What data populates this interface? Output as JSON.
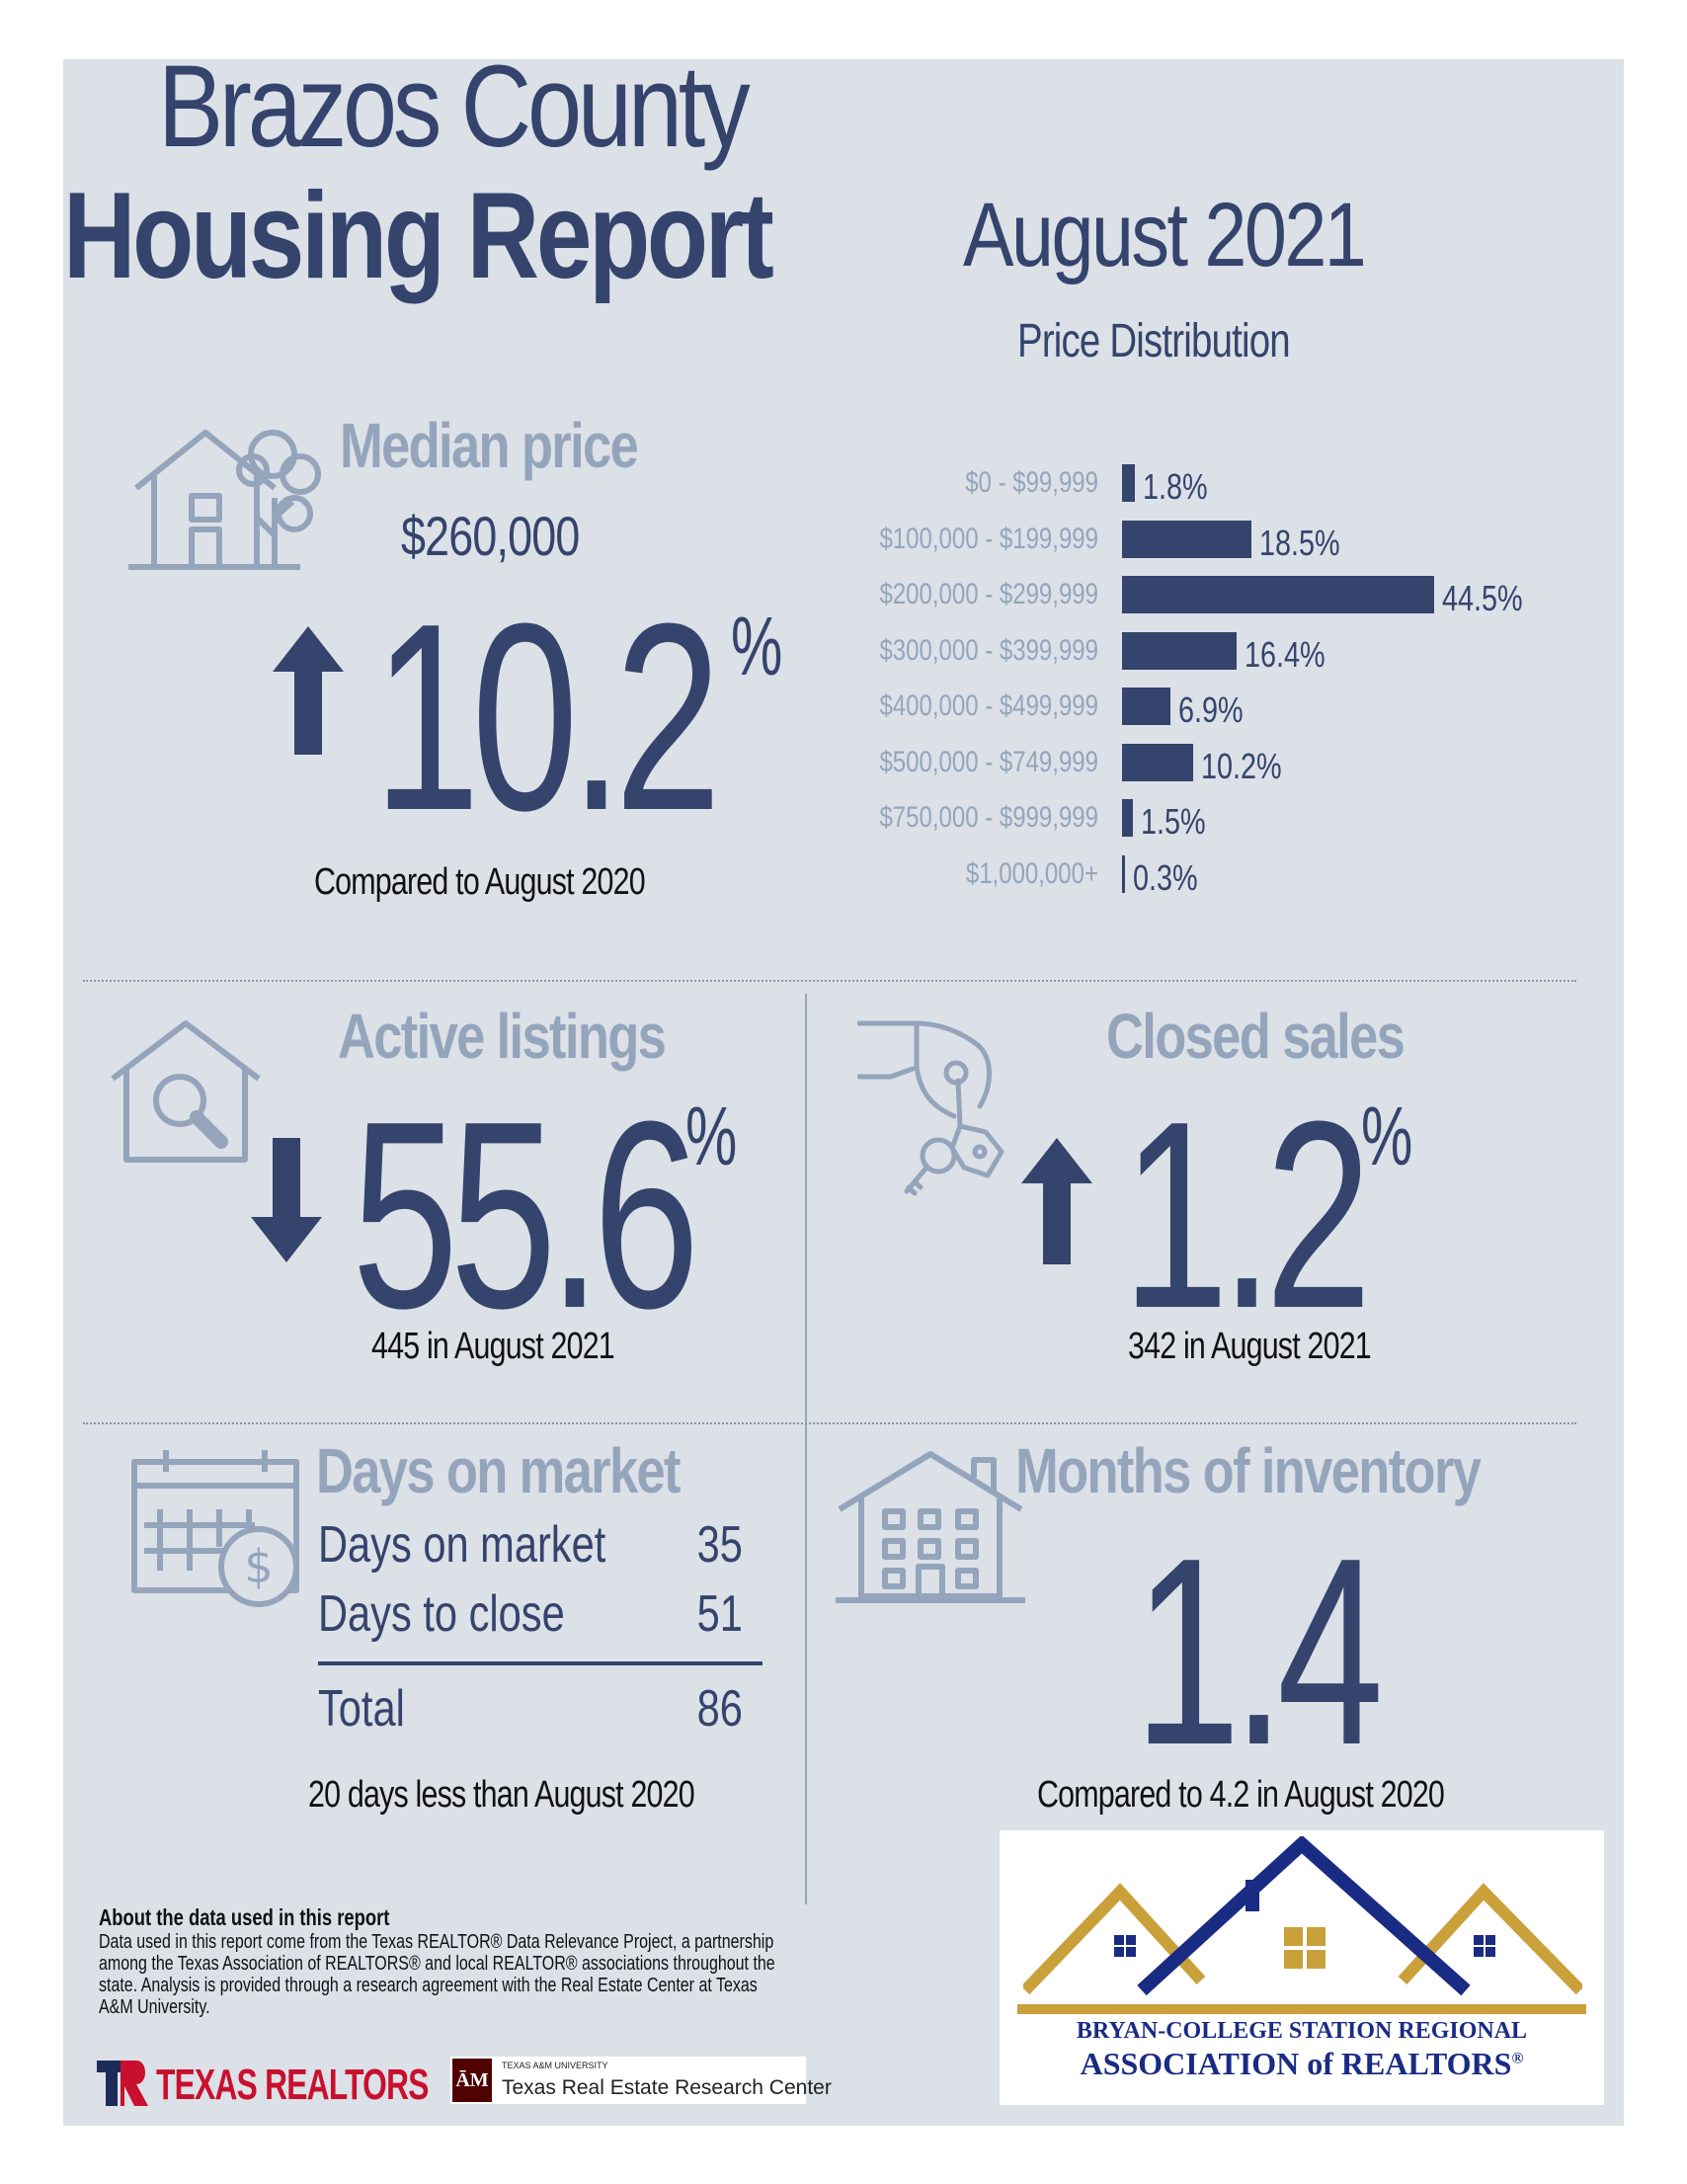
{
  "header": {
    "title_line1": "Brazos County",
    "title_line2": "Housing Report",
    "month": "August 2021"
  },
  "median_price": {
    "heading": "Median price",
    "value": "$260,000",
    "change": "10.2",
    "unit": "%",
    "direction": "up",
    "caption": "Compared to August 2020",
    "icon": "house-with-tree-icon"
  },
  "price_distribution": {
    "title": "Price Distribution",
    "rows": [
      {
        "label": "$0 - $99,999",
        "value": 1.8,
        "display": "1.8%"
      },
      {
        "label": "$100,000 - $199,999",
        "value": 18.5,
        "display": "18.5%"
      },
      {
        "label": "$200,000 - $299,999",
        "value": 44.5,
        "display": "44.5%"
      },
      {
        "label": "$300,000 - $399,999",
        "value": 16.4,
        "display": "16.4%"
      },
      {
        "label": "$400,000 - $499,999",
        "value": 6.9,
        "display": "6.9%"
      },
      {
        "label": "$500,000 - $749,999",
        "value": 10.2,
        "display": "10.2%"
      },
      {
        "label": "$750,000 - $999,999",
        "value": 1.5,
        "display": "1.5%"
      },
      {
        "label": "$1,000,000+",
        "value": 0.3,
        "display": "0.3%"
      }
    ]
  },
  "active_listings": {
    "heading": "Active listings",
    "change": "55.6",
    "unit": "%",
    "direction": "down",
    "caption": "445 in August 2021",
    "icon": "house-search-icon"
  },
  "closed_sales": {
    "heading": "Closed sales",
    "change": "1.2",
    "unit": "%",
    "direction": "up",
    "caption": "342 in August 2021",
    "icon": "hand-with-keys-icon"
  },
  "days_on_market": {
    "heading": "Days on market",
    "rows": [
      {
        "label": "Days on market",
        "value": "35"
      },
      {
        "label": "Days to close",
        "value": "51"
      }
    ],
    "total_label": "Total",
    "total_value": "86",
    "caption": "20 days less than August 2020",
    "icon": "calendar-dollar-icon"
  },
  "months_inventory": {
    "heading": "Months of inventory",
    "value": "1.4",
    "caption": "Compared to 4.2 in August 2020",
    "icon": "apartment-house-icon"
  },
  "about": {
    "heading": "About the data used in this report",
    "body": "Data used in this report come from the Texas REALTOR® Data Relevance Project, a partnership among the Texas Association of REALTORS® and local REALTOR® associations throughout the state. Analysis is provided through a research agreement with the Real Estate Center at Texas A&M University."
  },
  "logos": {
    "texas_realtors": "TEXAS REALTORS",
    "tamu_small": "TEXAS A&M UNIVERSITY",
    "tamu_center": "Texas Real Estate Research Center",
    "bcs_line1": "BRYAN-COLLEGE STATION REGIONAL",
    "bcs_line2": "ASSOCIATION of REALTORS",
    "bcs_reg": "®"
  },
  "colors": {
    "panel": "#dce0e7",
    "navy": "#34446c",
    "steel": "#94a5bb",
    "gold": "#c9a03a",
    "tx_red": "#c8102e",
    "maroon": "#500000"
  }
}
